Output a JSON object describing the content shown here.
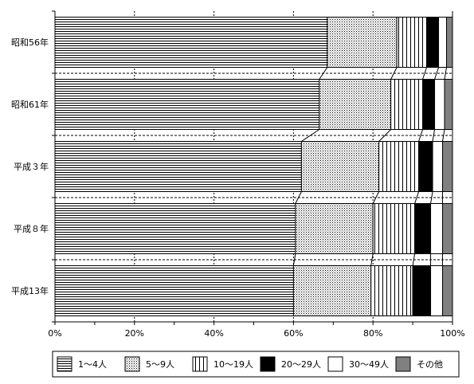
{
  "chart_data": {
    "type": "bar",
    "orientation": "horizontal",
    "stacked": "percent",
    "categories": [
      "昭和56年",
      "昭和61年",
      "平成３年",
      "平成８年",
      "平成13年"
    ],
    "series": [
      {
        "name": "1～4人",
        "pattern": "horizontal-lines",
        "values": [
          68.5,
          66.5,
          62.0,
          60.5,
          60.0
        ]
      },
      {
        "name": "5～9人",
        "pattern": "dots",
        "values": [
          17.5,
          18.0,
          19.5,
          19.5,
          19.5
        ]
      },
      {
        "name": "10～19人",
        "pattern": "vertical-lines",
        "values": [
          7.5,
          8.0,
          10.0,
          10.5,
          10.5
        ]
      },
      {
        "name": "20～29人",
        "pattern": "solid-black",
        "values": [
          3.0,
          3.0,
          3.5,
          4.0,
          4.5
        ]
      },
      {
        "name": "30～49人",
        "pattern": "white",
        "values": [
          2.0,
          2.5,
          2.5,
          3.0,
          3.0
        ]
      },
      {
        "name": "その他",
        "pattern": "dark-gray",
        "values": [
          1.5,
          2.0,
          2.5,
          2.5,
          2.5
        ]
      }
    ],
    "xlim": [
      0,
      100
    ],
    "xticks": [
      "0%",
      "20%",
      "40%",
      "60%",
      "80%",
      "100%"
    ],
    "grid": "dotted-vertical",
    "legend_position": "bottom"
  },
  "colors": {
    "solid": "#000000",
    "dark_gray": "#808080",
    "background": "#ffffff"
  }
}
